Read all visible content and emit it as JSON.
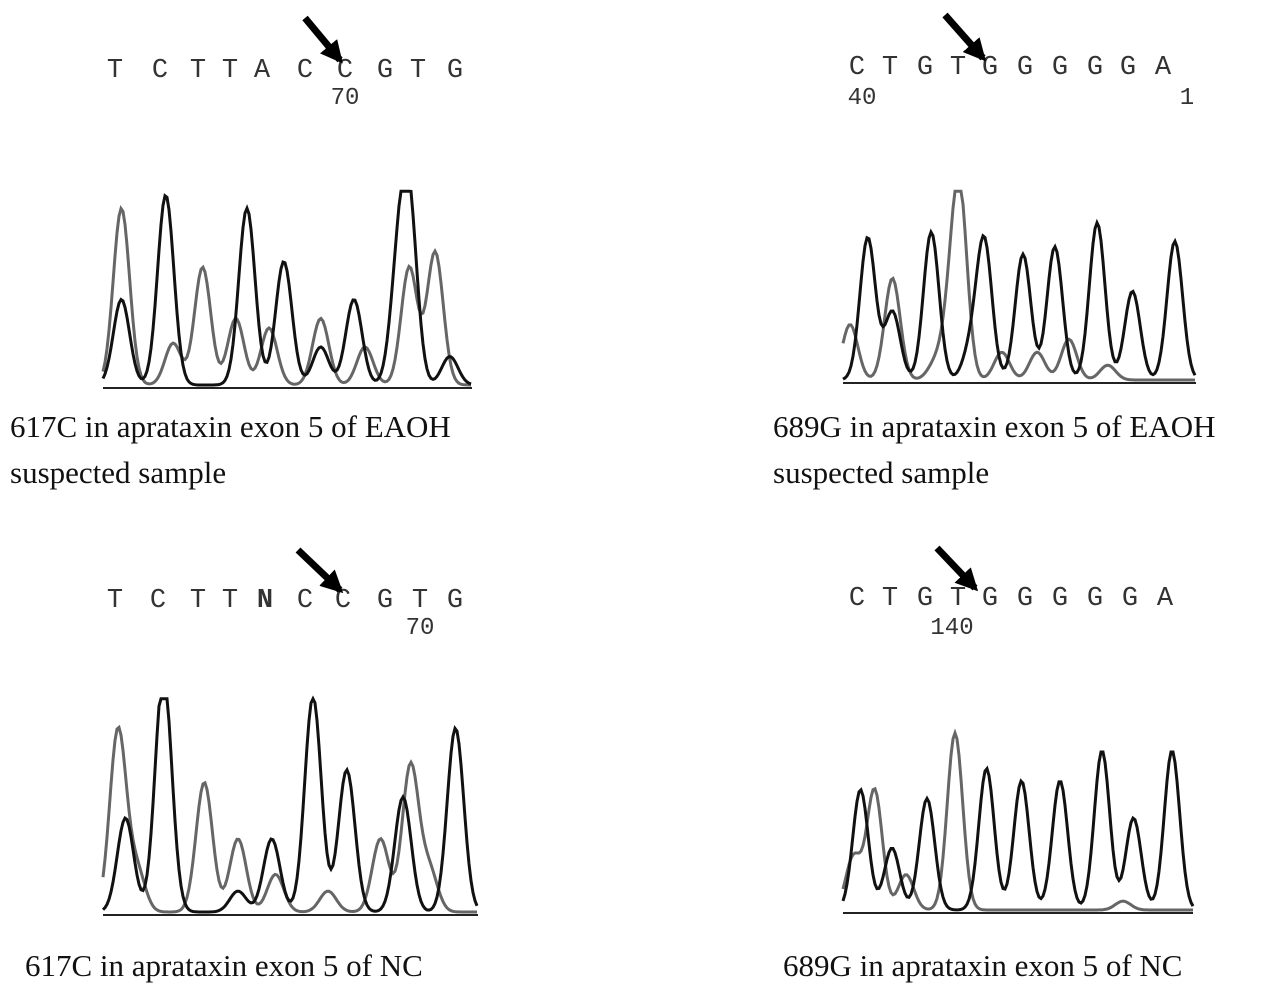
{
  "panels": [
    {
      "bases": [
        "T",
        "C",
        "T",
        "T",
        "A",
        "C",
        "C",
        "G",
        "T",
        "G"
      ],
      "positions": [
        "70"
      ],
      "caption": [
        "617C in aprataxin exon 5 of EAOH",
        "suspected sample"
      ]
    },
    {
      "bases": [
        "C",
        "T",
        "G",
        "T",
        "G",
        "G",
        "G",
        "G",
        "G",
        "A"
      ],
      "positions": [
        "40",
        "1"
      ],
      "caption": [
        "689G in aprataxin exon 5 of EAOH",
        "suspected sample"
      ]
    },
    {
      "bases": [
        "T",
        "C",
        "T",
        "T",
        "N",
        "C",
        "C",
        "G",
        "T",
        "G"
      ],
      "positions": [
        "70"
      ],
      "caption": [
        "617C in aprataxin exon 5 of NC"
      ]
    },
    {
      "bases": [
        "C",
        "T",
        "G",
        "T",
        "G",
        "G",
        "G",
        "G",
        "G",
        "A"
      ],
      "positions": [
        "140"
      ],
      "caption": [
        "689G in aprataxin exon 5 of NC"
      ]
    }
  ]
}
